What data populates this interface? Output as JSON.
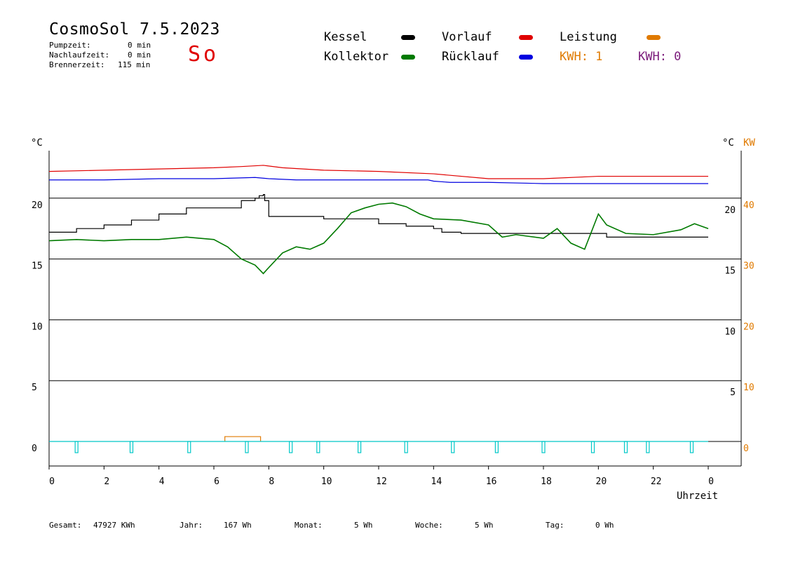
{
  "header": {
    "title": "CosmoSol 7.5.2023",
    "day": "So",
    "stats": [
      {
        "label": "Pumpzeit:",
        "value": "0 min"
      },
      {
        "label": "Nachlaufzeit:",
        "value": "0 min"
      },
      {
        "label": "Brennerzeit:",
        "value": "115 min"
      }
    ]
  },
  "legend": {
    "kessel": "Kessel",
    "kollektor": "Kollektor",
    "vorlauf": "Vorlauf",
    "ruecklauf": "Rücklauf",
    "leistung": "Leistung",
    "kwh1": "KWH: 1",
    "kwh2": "KWH: 0"
  },
  "axes": {
    "left_unit": "°C",
    "right_unit_c": "°C",
    "right_unit_kw": "KW",
    "xlabel": "Uhrzeit"
  },
  "footer": {
    "gesamt_label": "Gesamt:",
    "gesamt_value": "47927 KWh",
    "jahr_label": "Jahr:",
    "jahr_value": "167 Wh",
    "monat_label": "Monat:",
    "monat_value": "5 Wh",
    "woche_label": "Woche:",
    "woche_value": "5 Wh",
    "tag_label": "Tag:",
    "tag_value": "0 Wh"
  },
  "colors": {
    "kessel": "#000000",
    "kollektor": "#007a00",
    "vorlauf": "#e00000",
    "ruecklauf": "#0000e0",
    "leistung": "#e07a00",
    "kwh2": "#7a1a7a",
    "pump": "#00c8c8"
  },
  "chart_data": {
    "type": "line",
    "xlabel": "Uhrzeit",
    "xlim": [
      0,
      24
    ],
    "x_ticks": [
      "0",
      "2",
      "4",
      "6",
      "8",
      "10",
      "12",
      "14",
      "16",
      "18",
      "20",
      "22",
      "0"
    ],
    "ylim": [
      0,
      20
    ],
    "y_ticks_left": [
      "0",
      "5",
      "10",
      "15",
      "20"
    ],
    "y_ticks_right_c": [
      "5",
      "10",
      "15",
      "20"
    ],
    "y_ticks_right_kw": [
      "0",
      "10",
      "20",
      "30",
      "40"
    ],
    "series": [
      {
        "name": "Vorlauf",
        "color": "#e00000",
        "x": [
          0,
          2,
          4,
          6,
          7,
          7.8,
          8.5,
          10,
          12,
          14,
          16,
          18,
          20,
          22,
          24
        ],
        "y": [
          22.2,
          22.3,
          22.4,
          22.5,
          22.6,
          22.7,
          22.5,
          22.3,
          22.2,
          22.0,
          21.6,
          21.6,
          21.8,
          21.8,
          21.8
        ]
      },
      {
        "name": "Rücklauf",
        "color": "#0000e0",
        "x": [
          0,
          2,
          4,
          6,
          7.5,
          8,
          9,
          10,
          12,
          13.8,
          14,
          14.6,
          16,
          18,
          20,
          22,
          24
        ],
        "y": [
          21.5,
          21.5,
          21.6,
          21.6,
          21.7,
          21.6,
          21.5,
          21.5,
          21.5,
          21.5,
          21.4,
          21.3,
          21.3,
          21.2,
          21.2,
          21.2,
          21.2
        ]
      },
      {
        "name": "Kessel",
        "color": "#000000",
        "x": [
          0,
          1,
          2,
          3,
          4,
          5,
          5.1,
          7,
          7.5,
          7.65,
          7.8,
          7.85,
          8,
          10,
          12,
          13,
          14,
          14.3,
          15,
          16,
          20,
          20.3,
          24
        ],
        "y": [
          17.2,
          17.5,
          17.8,
          18.2,
          18.7,
          19.2,
          19.2,
          19.8,
          20.0,
          20.2,
          20.3,
          19.8,
          18.5,
          18.3,
          17.9,
          17.7,
          17.5,
          17.2,
          17.1,
          17.1,
          17.1,
          16.8,
          16.8
        ]
      },
      {
        "name": "Kollektor",
        "color": "#007a00",
        "x": [
          0,
          1,
          2,
          3,
          4,
          5,
          6,
          6.5,
          7,
          7.5,
          7.8,
          8,
          8.5,
          9,
          9.5,
          10,
          10.5,
          11,
          11.5,
          12,
          12.5,
          13,
          13.5,
          14,
          15,
          16,
          16.5,
          17,
          18,
          18.5,
          19,
          19.5,
          20,
          20.3,
          21,
          22,
          23,
          23.5,
          24
        ],
        "y": [
          16.5,
          16.6,
          16.5,
          16.6,
          16.6,
          16.8,
          16.6,
          16.0,
          15.0,
          14.5,
          13.8,
          14.3,
          15.5,
          16.0,
          15.8,
          16.3,
          17.5,
          18.8,
          19.2,
          19.5,
          19.6,
          19.3,
          18.7,
          18.3,
          18.2,
          17.8,
          16.8,
          17.0,
          16.7,
          17.5,
          16.3,
          15.8,
          18.7,
          17.8,
          17.1,
          17.0,
          17.4,
          17.9,
          17.5
        ]
      }
    ],
    "leistung_pulse": {
      "x_start": 6.4,
      "x_end": 7.7,
      "kw": 0.8
    },
    "pump_pulses_x": [
      1.0,
      3.0,
      5.1,
      7.2,
      8.8,
      9.8,
      11.3,
      13.0,
      14.7,
      16.3,
      18.0,
      19.8,
      21.0,
      21.8,
      23.4
    ]
  }
}
